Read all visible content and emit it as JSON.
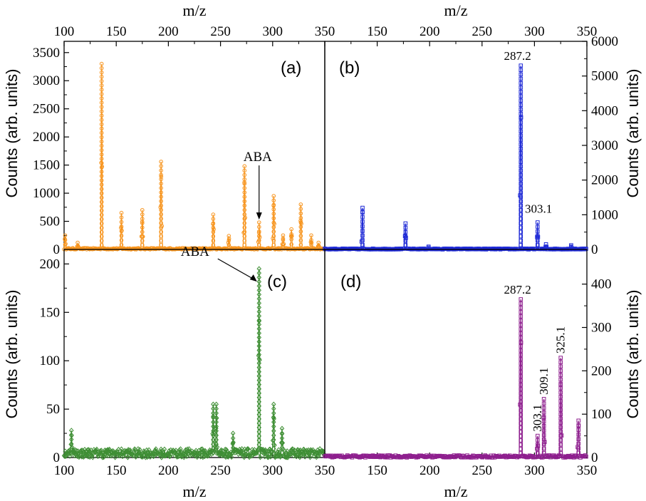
{
  "figure": {
    "top_axis_label": "m/z",
    "bottom_axis_label": "m/z",
    "y_axis_label": "Counts (arb. units)"
  },
  "chart_data": [
    {
      "panel": "(a)",
      "type": "line",
      "color": "#f7941d",
      "marker": "circle",
      "xlim": [
        100,
        350
      ],
      "ylim": [
        0,
        3700
      ],
      "xticks": [
        100,
        150,
        200,
        250,
        300,
        350
      ],
      "yticks": [
        0,
        500,
        1000,
        1500,
        2000,
        2500,
        3000,
        3500
      ],
      "y_axis_side": "left",
      "x_axis_side": "top",
      "xlabel": "m/z",
      "ylabel": "Counts (arb. units)",
      "peaks": [
        [
          101,
          250
        ],
        [
          113,
          120
        ],
        [
          136,
          3300
        ],
        [
          155,
          650
        ],
        [
          175,
          700
        ],
        [
          193,
          1560
        ],
        [
          243,
          620
        ],
        [
          258,
          240
        ],
        [
          273,
          1480
        ],
        [
          287,
          480
        ],
        [
          301,
          950
        ],
        [
          310,
          250
        ],
        [
          318,
          360
        ],
        [
          327,
          800
        ],
        [
          337,
          250
        ],
        [
          344,
          120
        ]
      ],
      "annotations": [
        {
          "text": "ABA",
          "x": 287,
          "y": 480
        }
      ]
    },
    {
      "panel": "(b)",
      "type": "line",
      "color": "#1f2ad6",
      "marker": "square",
      "xlim": [
        100,
        350
      ],
      "ylim": [
        0,
        6000
      ],
      "xticks": [
        150,
        200,
        250,
        300,
        350
      ],
      "yticks": [
        0,
        1000,
        2000,
        3000,
        4000,
        5000,
        6000
      ],
      "y_axis_side": "right",
      "x_axis_side": "top",
      "xlabel": "m/z",
      "ylabel": "Counts (arb. units)",
      "peaks": [
        [
          136,
          1200
        ],
        [
          177,
          750
        ],
        [
          199,
          80
        ],
        [
          287,
          5300
        ],
        [
          303,
          780
        ],
        [
          311,
          150
        ],
        [
          335,
          120
        ]
      ],
      "annotations": [
        {
          "text": "287.2",
          "x": 287.2,
          "y": 5300
        },
        {
          "text": "303.1",
          "x": 303.1,
          "y": 1300
        }
      ]
    },
    {
      "panel": "(c)",
      "type": "line",
      "color": "#3f8f35",
      "marker": "diamond",
      "xlim": [
        100,
        350
      ],
      "ylim": [
        0,
        215
      ],
      "xticks": [
        100,
        150,
        200,
        250,
        300,
        350
      ],
      "yticks": [
        0,
        50,
        100,
        150,
        200
      ],
      "y_axis_side": "left",
      "x_axis_side": "bottom",
      "xlabel": "m/z",
      "ylabel": "Counts (arb. units)",
      "peaks": [
        [
          107,
          28
        ],
        [
          243,
          55
        ],
        [
          246,
          55
        ],
        [
          262,
          25
        ],
        [
          287,
          195
        ],
        [
          301,
          55
        ],
        [
          309,
          30
        ]
      ],
      "annotations": [
        {
          "text": "ABA",
          "x": 287,
          "y": 195
        }
      ]
    },
    {
      "panel": "(d)",
      "type": "line",
      "color": "#8e1f8e",
      "marker": "square",
      "xlim": [
        100,
        350
      ],
      "ylim": [
        0,
        480
      ],
      "xticks": [
        150,
        200,
        250,
        300,
        350
      ],
      "yticks": [
        0,
        100,
        200,
        300,
        400
      ],
      "y_axis_side": "right",
      "x_axis_side": "bottom",
      "xlabel": "m/z",
      "ylabel": "Counts (arb. units)",
      "peaks": [
        [
          287,
          365
        ],
        [
          303,
          50
        ],
        [
          309,
          135
        ],
        [
          325,
          230
        ],
        [
          342,
          85
        ]
      ],
      "annotations": [
        {
          "text": "287.2",
          "x": 287.2,
          "y": 365
        },
        {
          "text": "303.1",
          "x": 303.1,
          "y": 50
        },
        {
          "text": "309.1",
          "x": 309.1,
          "y": 135
        },
        {
          "text": "325.1",
          "x": 325.1,
          "y": 230
        }
      ]
    }
  ]
}
